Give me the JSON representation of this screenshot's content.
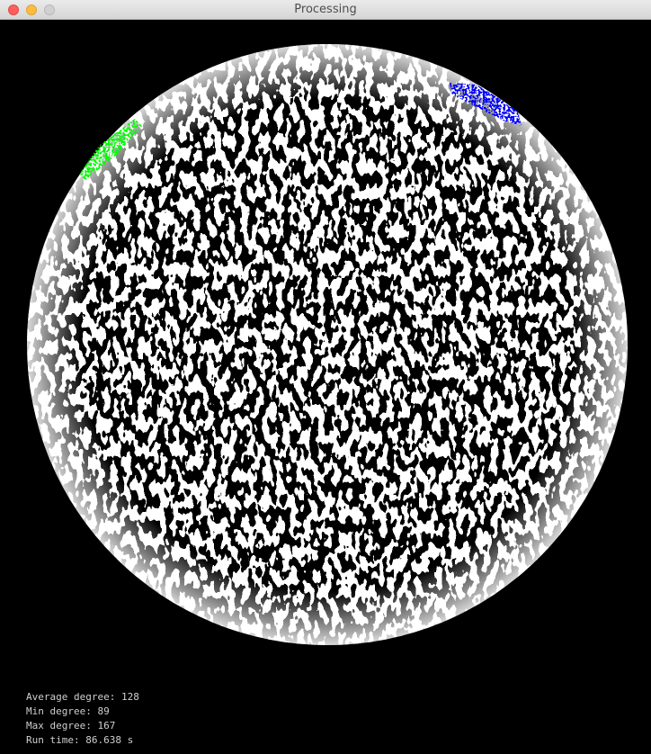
{
  "window": {
    "title": "Processing"
  },
  "stats": [
    "Average degree: 128",
    "Min degree: 89",
    "Max degree: 167",
    "Run time: 86.638 s"
  ]
}
